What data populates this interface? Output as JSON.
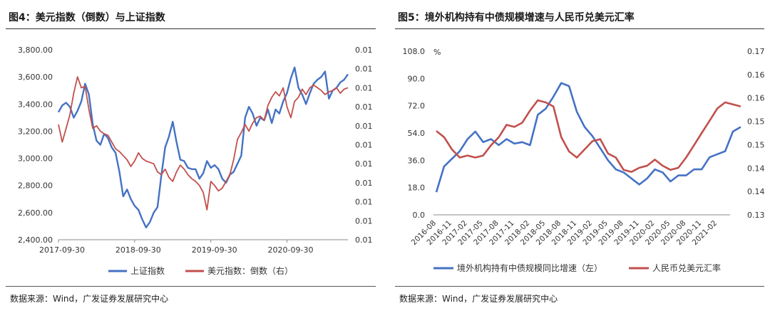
{
  "colors": {
    "blue": "#4472C4",
    "red": "#C0504D",
    "axis": "#888888",
    "text": "#333333"
  },
  "left_panel": {
    "title": "图4：美元指数（倒数）与上证指数",
    "source": "数据来源：Wind，广发证券发展研究中心"
  },
  "right_panel": {
    "title": "图5：境外机构持有中债规模增速与人民币兑美元汇率",
    "source": "数据来源：Wind，广发证券发展研究中心"
  },
  "chart_data": [
    {
      "type": "line",
      "title": "图4：美元指数（倒数）与上证指数",
      "x_tick_labels": [
        "2017-09-30",
        "2018-09-30",
        "2019-09-30",
        "2020-09-30"
      ],
      "y_left": {
        "range": [
          2400,
          3800
        ],
        "ticks": [
          "2,400.00",
          "2,600.00",
          "2,800.00",
          "3,000.00",
          "3,200.00",
          "3,400.00",
          "3,600.00",
          "3,800.00"
        ]
      },
      "y_right": {
        "ticks": [
          "0.01",
          "0.01",
          "0.01",
          "0.01",
          "0.01",
          "0.01",
          "0.01",
          "0.01",
          "0.01",
          "0.01",
          "0.01"
        ]
      },
      "series": [
        {
          "name": "上证指数",
          "axis": "left",
          "color": "#4472C4",
          "x": [
            0,
            0.05,
            0.1,
            0.15,
            0.2,
            0.25,
            0.3,
            0.35,
            0.4,
            0.45,
            0.5,
            0.55,
            0.6,
            0.65,
            0.7,
            0.75,
            0.8,
            0.85,
            0.9,
            0.95,
            1.0,
            1.05,
            1.1,
            1.15,
            1.2,
            1.25,
            1.3,
            1.35,
            1.4,
            1.45,
            1.5,
            1.55,
            1.6,
            1.65,
            1.7,
            1.75,
            1.8,
            1.85,
            1.9,
            1.95,
            2.0,
            2.05,
            2.1,
            2.15,
            2.2,
            2.25,
            2.3,
            2.35,
            2.4,
            2.45,
            2.5,
            2.55,
            2.6,
            2.65,
            2.7,
            2.75,
            2.8,
            2.85,
            2.9,
            2.95,
            3.0,
            3.05,
            3.1,
            3.15,
            3.2,
            3.25,
            3.3,
            3.35,
            3.4,
            3.45,
            3.5,
            3.55,
            3.6,
            3.65,
            3.7,
            3.75,
            3.8
          ],
          "y": [
            3340,
            3390,
            3410,
            3380,
            3300,
            3350,
            3420,
            3550,
            3470,
            3250,
            3130,
            3100,
            3180,
            3150,
            3080,
            3040,
            2900,
            2720,
            2770,
            2700,
            2650,
            2620,
            2550,
            2490,
            2530,
            2600,
            2640,
            2870,
            3080,
            3160,
            3270,
            3120,
            2990,
            2980,
            2930,
            2920,
            2920,
            2850,
            2890,
            2980,
            2930,
            2950,
            2920,
            2850,
            2820,
            2880,
            2900,
            2960,
            3020,
            3300,
            3380,
            3330,
            3240,
            3300,
            3280,
            3360,
            3260,
            3360,
            3330,
            3420,
            3480,
            3590,
            3670,
            3520,
            3470,
            3400,
            3480,
            3550,
            3580,
            3600,
            3640,
            3440,
            3500,
            3520,
            3560,
            3580,
            3620
          ]
        },
        {
          "name": "美元指数：倒数（右）",
          "axis": "right",
          "color": "#C0504D",
          "x": [
            0,
            0.05,
            0.1,
            0.15,
            0.2,
            0.25,
            0.3,
            0.35,
            0.4,
            0.45,
            0.5,
            0.55,
            0.6,
            0.65,
            0.7,
            0.75,
            0.8,
            0.85,
            0.9,
            0.95,
            1.0,
            1.05,
            1.1,
            1.15,
            1.2,
            1.25,
            1.3,
            1.35,
            1.4,
            1.45,
            1.5,
            1.55,
            1.6,
            1.65,
            1.7,
            1.75,
            1.8,
            1.85,
            1.9,
            1.95,
            2.0,
            2.05,
            2.1,
            2.15,
            2.2,
            2.25,
            2.3,
            2.35,
            2.4,
            2.45,
            2.5,
            2.55,
            2.6,
            2.65,
            2.7,
            2.75,
            2.8,
            2.85,
            2.9,
            2.95,
            3.0,
            3.05,
            3.1,
            3.15,
            3.2,
            3.25,
            3.3,
            3.35,
            3.4,
            3.45,
            3.5,
            3.55,
            3.6,
            3.65,
            3.7,
            3.75,
            3.8
          ],
          "y": [
            3250,
            3120,
            3220,
            3320,
            3480,
            3600,
            3520,
            3530,
            3360,
            3220,
            3240,
            3200,
            3180,
            3170,
            3120,
            3070,
            3050,
            3020,
            2990,
            2940,
            2980,
            3040,
            3000,
            2980,
            2970,
            2960,
            2900,
            2880,
            2920,
            2860,
            2830,
            2900,
            2950,
            2920,
            2880,
            2850,
            2830,
            2800,
            2750,
            2620,
            2830,
            2800,
            2760,
            2780,
            2830,
            2880,
            2990,
            3140,
            3190,
            3250,
            3200,
            3260,
            3300,
            3310,
            3280,
            3390,
            3450,
            3490,
            3460,
            3520,
            3380,
            3300,
            3420,
            3450,
            3510,
            3470,
            3520,
            3540,
            3520,
            3500,
            3470,
            3490,
            3500,
            3520,
            3480,
            3510,
            3520
          ]
        }
      ],
      "legend": [
        "上证指数",
        "美元指数：倒数（右）"
      ]
    },
    {
      "type": "line",
      "title": "图5：境外机构持有中债规模增速与人民币兑美元汇率",
      "unit_left": "%",
      "x_tick_labels": [
        "2016-08",
        "2016-11",
        "2017-02",
        "2017-05",
        "2017-08",
        "2017-11",
        "2018-02",
        "2018-05",
        "2018-08",
        "2018-11",
        "2019-02",
        "2019-05",
        "2019-08",
        "2019-11",
        "2020-02",
        "2020-05",
        "2020-08",
        "2020-11",
        "2021-02"
      ],
      "y_left": {
        "range": [
          0,
          108
        ],
        "ticks": [
          "0.0",
          "18.0",
          "36.0",
          "54.0",
          "72.0",
          "90.0",
          "108.0"
        ]
      },
      "y_right": {
        "range": [
          0.13,
          0.17
        ],
        "ticks": [
          "0.13",
          "0.14",
          "0.14",
          "0.15",
          "0.15",
          "0.16",
          "0.16",
          "0.17"
        ]
      },
      "series": [
        {
          "name": "境外机构持有中债规模同比增速（左）",
          "axis": "left",
          "color": "#4472C4",
          "x": [
            0,
            0.5,
            1,
            1.5,
            2,
            2.5,
            3,
            3.5,
            4,
            4.5,
            5,
            5.5,
            6,
            6.5,
            7,
            7.5,
            8,
            8.5,
            9,
            9.5,
            10,
            10.5,
            11,
            11.5,
            12,
            12.5,
            13,
            13.5,
            14,
            14.5,
            15,
            15.5,
            16,
            16.5,
            17,
            17.5,
            18,
            18.5,
            19,
            19.5
          ],
          "y": [
            15,
            32,
            37,
            42,
            50,
            55,
            48,
            50,
            46,
            50,
            47,
            48,
            46,
            66,
            70,
            78,
            87,
            85,
            68,
            58,
            52,
            44,
            36,
            30,
            28,
            24,
            20,
            24,
            30,
            28,
            22,
            26,
            26,
            30,
            30,
            38,
            40,
            42,
            55,
            58
          ]
        },
        {
          "name": "人民币兑美元汇率",
          "axis": "right",
          "color": "#C0504D",
          "x": [
            0,
            0.5,
            1,
            1.5,
            2,
            2.5,
            3,
            3.5,
            4,
            4.5,
            5,
            5.5,
            6,
            6.5,
            7,
            7.5,
            8,
            8.5,
            9,
            9.5,
            10,
            10.5,
            11,
            11.5,
            12,
            12.5,
            13,
            13.5,
            14,
            14.5,
            15,
            15.5,
            16,
            16.5,
            17,
            17.5,
            18,
            18.5,
            19,
            19.5
          ],
          "y": [
            0.1505,
            0.149,
            0.146,
            0.144,
            0.1445,
            0.144,
            0.1445,
            0.147,
            0.149,
            0.152,
            0.1515,
            0.1525,
            0.1555,
            0.158,
            0.1575,
            0.1565,
            0.149,
            0.1455,
            0.144,
            0.146,
            0.148,
            0.1485,
            0.145,
            0.144,
            0.141,
            0.1405,
            0.1415,
            0.142,
            0.1435,
            0.142,
            0.141,
            0.1415,
            0.144,
            0.147,
            0.15,
            0.153,
            0.156,
            0.1575,
            0.157,
            0.1565
          ]
        }
      ],
      "legend": [
        "境外机构持有中债规模同比增速（左）",
        "人民币兑美元汇率"
      ]
    }
  ]
}
